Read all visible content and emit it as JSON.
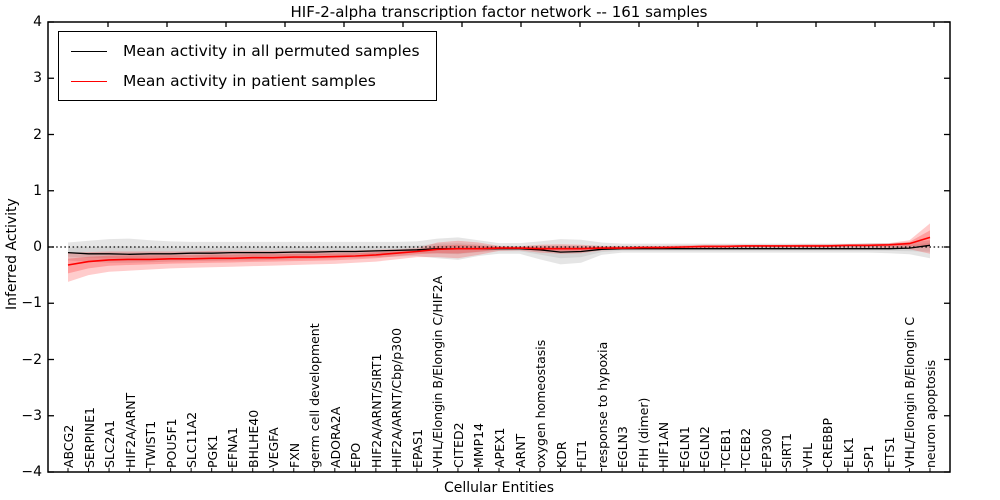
{
  "figure": {
    "title": "HIF-2-alpha transcription factor network -- 161 samples",
    "xlabel": "Cellular Entities",
    "ylabel": "Inferred Activity",
    "background": "#ffffff",
    "frame_color": "#000000"
  },
  "legend": {
    "position": "upper left",
    "entries": [
      {
        "label": "Mean activity in all permuted samples",
        "color": "#000000"
      },
      {
        "label": "Mean activity in patient samples",
        "color": "#ff0000"
      }
    ]
  },
  "axes": {
    "ylim": [
      -4,
      4
    ],
    "ytick_labels": [
      "4",
      "3",
      "2",
      "1",
      "0",
      "−1",
      "−2",
      "−3",
      "−4"
    ],
    "ytick_values": [
      4,
      3,
      2,
      1,
      0,
      -1,
      -2,
      -3,
      -4
    ],
    "grid": "off",
    "zero_reference_line": {
      "style": "dotted",
      "color": "#000000",
      "y": 0
    }
  },
  "chart_data": {
    "type": "line",
    "title": "HIF-2-alpha transcription factor network -- 161 samples",
    "xlabel": "Cellular Entities",
    "ylabel": "Inferred Activity",
    "ylim": [
      -4,
      4
    ],
    "legend_position": "upper left",
    "categories": [
      "ABCG2",
      "SERPINE1",
      "SLC2A1",
      "HIF2A/ARNT",
      "TWIST1",
      "POU5F1",
      "SLC11A2",
      "PGK1",
      "EFNA1",
      "BHLHE40",
      "VEGFA",
      "FXN",
      "germ cell development",
      "ADORA2A",
      "EPO",
      "HIF2A/ARNT/SIRT1",
      "HIF2A/ARNT/Cbp/p300",
      "EPAS1",
      "VHL/Elongin B/Elongin C/HIF2A",
      "CITED2",
      "MMP14",
      "APEX1",
      "ARNT",
      "oxygen homeostasis",
      "KDR",
      "FLT1",
      "response to hypoxia",
      "EGLN3",
      "FIH (dimer)",
      "HIF1AN",
      "EGLN1",
      "EGLN2",
      "TCEB1",
      "TCEB2",
      "EP300",
      "SIRT1",
      "VHL",
      "CREBBP",
      "ELK1",
      "SP1",
      "ETS1",
      "VHL/Elongin B/Elongin C",
      "neuron apoptosis"
    ],
    "series": [
      {
        "name": "Mean activity in all permuted samples",
        "color": "#000000",
        "mean": [
          -0.1,
          -0.12,
          -0.12,
          -0.13,
          -0.12,
          -0.12,
          -0.11,
          -0.11,
          -0.1,
          -0.1,
          -0.1,
          -0.09,
          -0.09,
          -0.08,
          -0.08,
          -0.07,
          -0.06,
          -0.05,
          -0.03,
          -0.03,
          -0.03,
          -0.03,
          -0.03,
          -0.05,
          -0.09,
          -0.08,
          -0.04,
          -0.03,
          -0.03,
          -0.03,
          -0.03,
          -0.03,
          -0.03,
          -0.03,
          -0.03,
          -0.03,
          -0.03,
          -0.03,
          -0.03,
          -0.03,
          -0.03,
          -0.02,
          0.03
        ],
        "band_high": [
          0.08,
          0.11,
          0.14,
          0.15,
          0.12,
          0.1,
          0.09,
          0.09,
          0.09,
          0.09,
          0.09,
          0.09,
          0.09,
          0.09,
          0.09,
          0.09,
          0.09,
          0.1,
          0.15,
          0.17,
          0.12,
          0.07,
          0.07,
          0.1,
          0.14,
          0.13,
          0.08,
          0.06,
          0.06,
          0.06,
          0.06,
          0.06,
          0.06,
          0.06,
          0.06,
          0.06,
          0.06,
          0.06,
          0.06,
          0.07,
          0.07,
          0.08,
          0.12
        ],
        "band_low": [
          -0.24,
          -0.26,
          -0.28,
          -0.28,
          -0.27,
          -0.26,
          -0.25,
          -0.25,
          -0.24,
          -0.24,
          -0.23,
          -0.22,
          -0.21,
          -0.2,
          -0.19,
          -0.18,
          -0.17,
          -0.16,
          -0.2,
          -0.23,
          -0.16,
          -0.12,
          -0.12,
          -0.22,
          -0.31,
          -0.28,
          -0.14,
          -0.1,
          -0.1,
          -0.1,
          -0.1,
          -0.1,
          -0.1,
          -0.1,
          -0.1,
          -0.1,
          -0.1,
          -0.1,
          -0.1,
          -0.1,
          -0.11,
          -0.13,
          -0.2
        ]
      },
      {
        "name": "Mean activity in patient samples",
        "color": "#ff0000",
        "mean": [
          -0.32,
          -0.26,
          -0.23,
          -0.22,
          -0.22,
          -0.21,
          -0.21,
          -0.2,
          -0.2,
          -0.19,
          -0.19,
          -0.18,
          -0.18,
          -0.17,
          -0.16,
          -0.14,
          -0.11,
          -0.08,
          -0.04,
          -0.03,
          -0.03,
          -0.02,
          -0.02,
          -0.03,
          -0.03,
          -0.03,
          -0.02,
          -0.02,
          -0.01,
          -0.01,
          0.0,
          0.01,
          0.01,
          0.02,
          0.02,
          0.02,
          0.02,
          0.02,
          0.03,
          0.03,
          0.04,
          0.06,
          0.17
        ],
        "band_high": [
          -0.1,
          -0.09,
          -0.08,
          -0.08,
          -0.08,
          -0.08,
          -0.08,
          -0.07,
          -0.07,
          -0.07,
          -0.07,
          -0.07,
          -0.06,
          -0.06,
          -0.06,
          -0.05,
          -0.04,
          -0.02,
          0.08,
          0.11,
          0.08,
          0.02,
          0.01,
          0.04,
          0.05,
          0.04,
          0.02,
          0.02,
          0.02,
          0.02,
          0.03,
          0.04,
          0.04,
          0.04,
          0.04,
          0.04,
          0.05,
          0.05,
          0.05,
          0.06,
          0.07,
          0.12,
          0.42
        ],
        "band_low": [
          -0.62,
          -0.5,
          -0.44,
          -0.42,
          -0.4,
          -0.38,
          -0.37,
          -0.36,
          -0.35,
          -0.34,
          -0.33,
          -0.32,
          -0.31,
          -0.3,
          -0.28,
          -0.26,
          -0.22,
          -0.18,
          -0.18,
          -0.2,
          -0.14,
          -0.07,
          -0.06,
          -0.1,
          -0.12,
          -0.11,
          -0.06,
          -0.05,
          -0.04,
          -0.04,
          -0.03,
          -0.02,
          -0.02,
          -0.01,
          -0.01,
          -0.01,
          -0.01,
          -0.01,
          -0.01,
          -0.01,
          -0.02,
          -0.04,
          -0.12
        ]
      }
    ]
  }
}
